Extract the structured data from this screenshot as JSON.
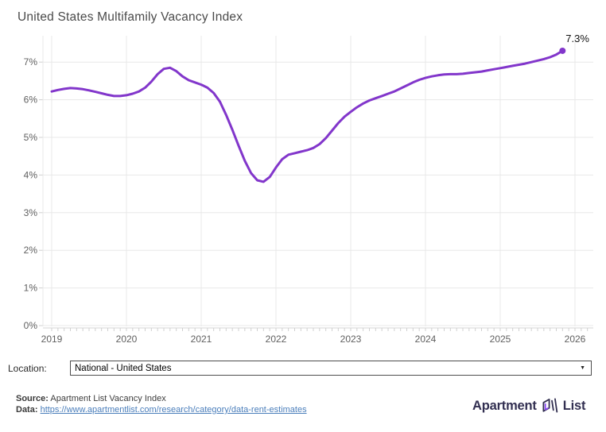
{
  "title": "United States Multifamily Vacancy Index",
  "annotation_label": "7.3%",
  "location": {
    "label": "Location:",
    "selected": "National - United States",
    "dropdown_icon": "▼"
  },
  "footer": {
    "source_label": "Source:",
    "source_text": "Apartment List Vacancy Index",
    "data_label": "Data:",
    "data_link": "https://www.apartmentlist.com/research/category/data-rent-estimates"
  },
  "logo": {
    "word1": "Apartment",
    "word2": "List",
    "mark_icon": "apartment-list-mark"
  },
  "colors": {
    "line": "#8236cb",
    "grid": "#e8e8e8",
    "axis_line": "#d6d6d6",
    "tick": "#d0d0d0",
    "axis_text": "#5f5f5f",
    "title_text": "#4a4a4a",
    "annotation_text": "#141414",
    "link_blue": "#4a7ebb",
    "logo_navy": "#322f51",
    "logo_purple": "#8b48f7"
  },
  "chart_data": {
    "type": "line",
    "title": "United States Multifamily Vacancy Index",
    "xlabel": "",
    "ylabel": "",
    "grid": true,
    "legend_position": "none",
    "xlim": [
      2018.88,
      2026.2
    ],
    "ylim": [
      0,
      7.7
    ],
    "x_ticks": [
      2019,
      2020,
      2021,
      2022,
      2023,
      2024,
      2025,
      2026
    ],
    "y_ticks": [
      "0%",
      "1%",
      "2%",
      "3%",
      "4%",
      "5%",
      "6%",
      "7%"
    ],
    "y_tick_values": [
      0,
      1,
      2,
      3,
      4,
      5,
      6,
      7
    ],
    "end_label": "7.3%",
    "end_value": 7.3,
    "series": [
      {
        "name": "US Multifamily Vacancy Index",
        "color": "#8236cb",
        "x": [
          2019.0,
          2019.083,
          2019.167,
          2019.25,
          2019.333,
          2019.417,
          2019.5,
          2019.583,
          2019.667,
          2019.75,
          2019.833,
          2019.917,
          2020.0,
          2020.083,
          2020.167,
          2020.25,
          2020.333,
          2020.417,
          2020.5,
          2020.583,
          2020.667,
          2020.75,
          2020.833,
          2020.917,
          2021.0,
          2021.083,
          2021.167,
          2021.25,
          2021.333,
          2021.417,
          2021.5,
          2021.583,
          2021.667,
          2021.75,
          2021.833,
          2021.917,
          2022.0,
          2022.083,
          2022.167,
          2022.25,
          2022.333,
          2022.417,
          2022.5,
          2022.583,
          2022.667,
          2022.75,
          2022.833,
          2022.917,
          2023.0,
          2023.083,
          2023.167,
          2023.25,
          2023.333,
          2023.417,
          2023.5,
          2023.583,
          2023.667,
          2023.75,
          2023.833,
          2023.917,
          2024.0,
          2024.083,
          2024.167,
          2024.25,
          2024.333,
          2024.417,
          2024.5,
          2024.583,
          2024.667,
          2024.75,
          2024.833,
          2024.917,
          2025.0,
          2025.083,
          2025.167,
          2025.25,
          2025.333,
          2025.417,
          2025.5,
          2025.583,
          2025.667,
          2025.75,
          2025.833
        ],
        "y": [
          6.22,
          6.26,
          6.29,
          6.31,
          6.3,
          6.28,
          6.25,
          6.21,
          6.17,
          6.13,
          6.1,
          6.1,
          6.12,
          6.16,
          6.22,
          6.32,
          6.48,
          6.68,
          6.82,
          6.85,
          6.76,
          6.62,
          6.52,
          6.46,
          6.4,
          6.32,
          6.18,
          5.95,
          5.6,
          5.2,
          4.78,
          4.38,
          4.05,
          3.86,
          3.82,
          3.95,
          4.2,
          4.42,
          4.54,
          4.58,
          4.62,
          4.66,
          4.72,
          4.82,
          4.98,
          5.18,
          5.38,
          5.55,
          5.68,
          5.8,
          5.9,
          5.98,
          6.04,
          6.1,
          6.16,
          6.22,
          6.3,
          6.38,
          6.46,
          6.53,
          6.58,
          6.62,
          6.65,
          6.67,
          6.68,
          6.68,
          6.69,
          6.71,
          6.73,
          6.75,
          6.78,
          6.81,
          6.84,
          6.87,
          6.9,
          6.93,
          6.96,
          7.0,
          7.04,
          7.08,
          7.13,
          7.2,
          7.3
        ]
      }
    ]
  }
}
